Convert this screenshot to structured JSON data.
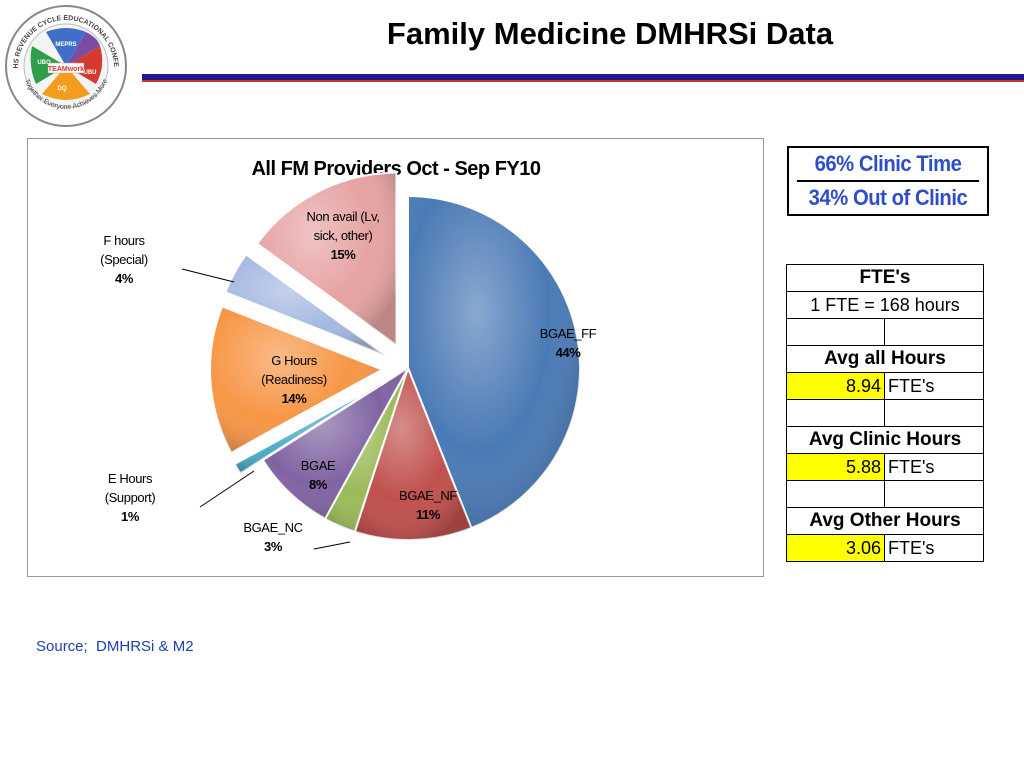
{
  "slide": {
    "title": "Family Medicine DMHRSi Data",
    "source": "Source;  DMHRSi & M2"
  },
  "logo": {
    "icon": "conference-logo-icon",
    "ring_top": "2011 MHS REVENUE CYCLE EDUCATIONAL CONFERENCE",
    "ring_bottom": "Together Everyone Achieves More",
    "center": "TEAMwork",
    "segments": [
      "MEPRS",
      "UBO",
      "UBU",
      "DQ"
    ]
  },
  "summary": {
    "clinic_time": "66% Clinic Time",
    "out_of_clinic": "34% Out of Clinic"
  },
  "fte_table": {
    "header": "FTE's",
    "definition": "1 FTE = 168 hours",
    "avg_all_label": "Avg all Hours",
    "avg_all_value": "8.94",
    "avg_clinic_label": "Avg Clinic Hours",
    "avg_clinic_value": "5.88",
    "avg_other_label": "Avg Other Hours",
    "avg_other_value": "3.06",
    "unit": "FTE's"
  },
  "chart_data": {
    "type": "pie",
    "title": "All FM Providers Oct - Sep FY10",
    "slices": [
      {
        "label": "BGAE_FF",
        "value": 44,
        "pct_label": "44%",
        "color": "#4a7ab5",
        "exploded": false
      },
      {
        "label": "BGAE_NF",
        "value": 11,
        "pct_label": "11%",
        "color": "#c0504d",
        "exploded": false
      },
      {
        "label": "BGAE_NC",
        "value": 3,
        "pct_label": "3%",
        "color": "#9bbb59",
        "exploded": false
      },
      {
        "label": "BGAE",
        "value": 8,
        "pct_label": "8%",
        "color": "#8064a2",
        "exploded": false
      },
      {
        "label": "E Hours (Support)",
        "value": 1,
        "pct_label": "1%",
        "color": "#4bacc6",
        "exploded": true
      },
      {
        "label": "G Hours (Readiness)",
        "value": 14,
        "pct_label": "14%",
        "color": "#f79646",
        "exploded": true
      },
      {
        "label": "F hours (Special)",
        "value": 4,
        "pct_label": "4%",
        "color": "#a5b9e0",
        "exploded": true
      },
      {
        "label": "Non avail (Lv, sick, other)",
        "value": 15,
        "pct_label": "15%",
        "color": "#e6a3a3",
        "exploded": true
      }
    ],
    "legend": "none"
  }
}
